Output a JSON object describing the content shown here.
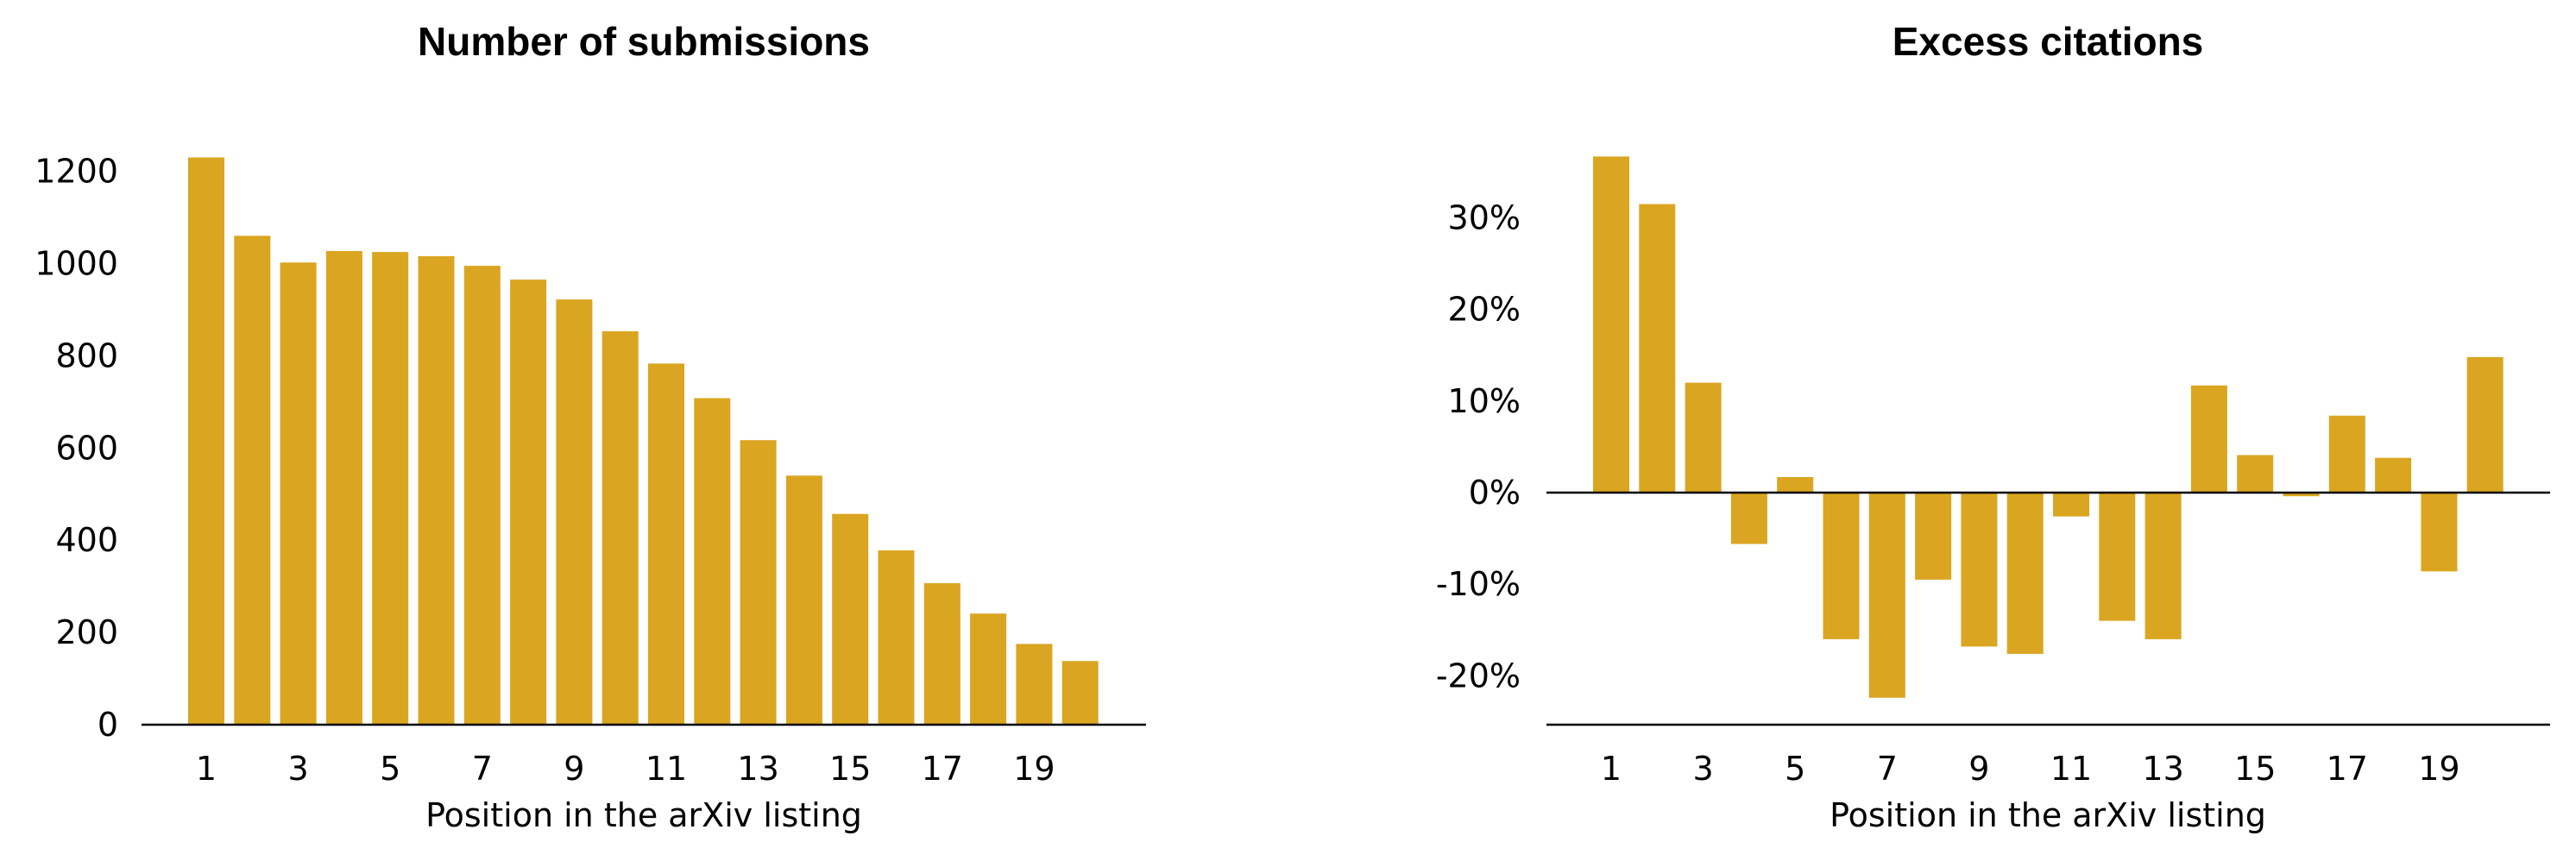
{
  "chart_data": [
    {
      "type": "bar",
      "title": "Number of submissions",
      "xlabel": "Position in the arXiv listing",
      "ylabel": "",
      "x": [
        1,
        2,
        3,
        4,
        5,
        6,
        7,
        8,
        9,
        10,
        11,
        12,
        13,
        14,
        15,
        16,
        17,
        18,
        19,
        20
      ],
      "values": [
        1230,
        1060,
        1002,
        1027,
        1025,
        1016,
        995,
        965,
        922,
        853,
        783,
        708,
        617,
        540,
        457,
        378,
        307,
        241,
        175,
        138
      ],
      "ylim": [
        0,
        1300
      ],
      "xticks": [
        "1",
        "3",
        "5",
        "7",
        "9",
        "11",
        "13",
        "15",
        "17",
        "19"
      ],
      "yticks": [
        "0",
        "200",
        "400",
        "600",
        "800",
        "1000",
        "1200"
      ],
      "ytick_values": [
        0,
        200,
        400,
        600,
        800,
        1000,
        1200
      ],
      "bar_color": "#DAA520",
      "grid": false,
      "legend": "none"
    },
    {
      "type": "bar",
      "title": "Excess citations",
      "xlabel": "Position in the arXiv listing",
      "ylabel": "",
      "x": [
        1,
        2,
        3,
        4,
        5,
        6,
        7,
        8,
        9,
        10,
        11,
        12,
        13,
        14,
        15,
        16,
        17,
        18,
        19,
        20
      ],
      "values": [
        36.7,
        31.5,
        12.0,
        -5.6,
        1.7,
        -16.0,
        -22.4,
        -9.5,
        -16.8,
        -17.6,
        -2.6,
        -14.0,
        -16.0,
        11.7,
        4.1,
        -0.4,
        8.4,
        3.8,
        -8.6,
        14.8
      ],
      "ylim": [
        -25,
        38
      ],
      "xticks": [
        "1",
        "3",
        "5",
        "7",
        "9",
        "11",
        "13",
        "15",
        "17",
        "19"
      ],
      "yticks": [
        "-20%",
        "-10%",
        "0%",
        "10%",
        "20%",
        "30%"
      ],
      "ytick_values": [
        -20,
        -10,
        0,
        10,
        20,
        30
      ],
      "bar_color": "#DAA520",
      "grid": false,
      "legend": "none"
    }
  ]
}
